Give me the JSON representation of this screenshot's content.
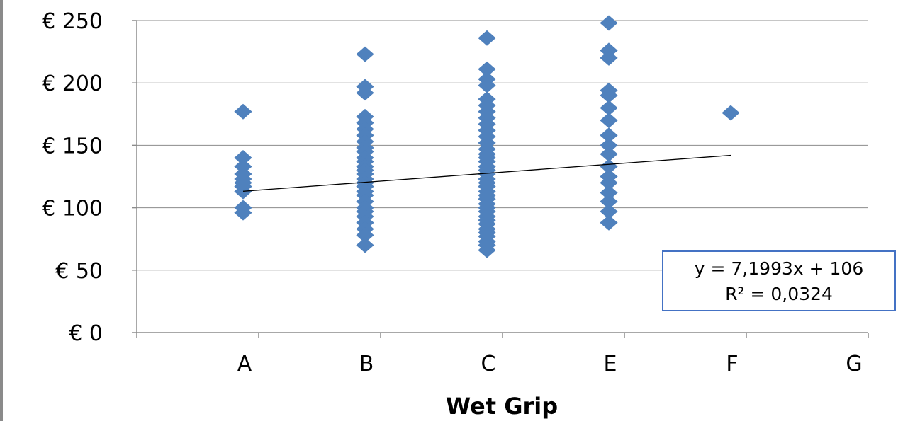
{
  "chart_data": {
    "type": "scatter",
    "title": "",
    "xlabel": "Wet Grip",
    "ylabel": "",
    "categories": [
      "A",
      "B",
      "C",
      "E",
      "F",
      "G"
    ],
    "x_positions": [
      1,
      2,
      3,
      4,
      5,
      6
    ],
    "ytick_labels": [
      "€ 0",
      "€ 50",
      "€ 100",
      "€ 150",
      "€ 200",
      "€ 250"
    ],
    "ylim": [
      0,
      250
    ],
    "xlim": [
      0,
      6
    ],
    "grid": true,
    "legend": "none",
    "marker": "diamond",
    "marker_color": "#4f81bd",
    "series": [
      {
        "points": {
          "A": [
            177,
            140,
            133,
            127,
            123,
            120,
            117,
            113,
            100,
            96
          ],
          "B": [
            223,
            197,
            192,
            173,
            168,
            163,
            158,
            153,
            148,
            145,
            140,
            137,
            133,
            130,
            127,
            123,
            120,
            117,
            113,
            110,
            105,
            100,
            97,
            93,
            88,
            83,
            78,
            70
          ],
          "C": [
            236,
            211,
            203,
            198,
            187,
            182,
            177,
            172,
            167,
            162,
            157,
            152,
            147,
            143,
            140,
            137,
            133,
            130,
            127,
            123,
            120,
            117,
            113,
            110,
            107,
            103,
            100,
            97,
            93,
            90,
            87,
            83,
            80,
            77,
            73,
            70,
            66
          ],
          "E": [
            248,
            226,
            220,
            194,
            190,
            180,
            170,
            158,
            150,
            143,
            133,
            125,
            120,
            112,
            105,
            97,
            88
          ],
          "F": [
            176
          ]
        }
      }
    ],
    "trendline": {
      "type": "linear",
      "slope": 7.1993,
      "intercept": 106,
      "x_range": [
        1,
        5
      ],
      "color": "#000000"
    },
    "annotation": {
      "equation": "y = 7,1993x + 106",
      "r_squared": "R² = 0,0324",
      "border_color": "#4472c4"
    }
  }
}
